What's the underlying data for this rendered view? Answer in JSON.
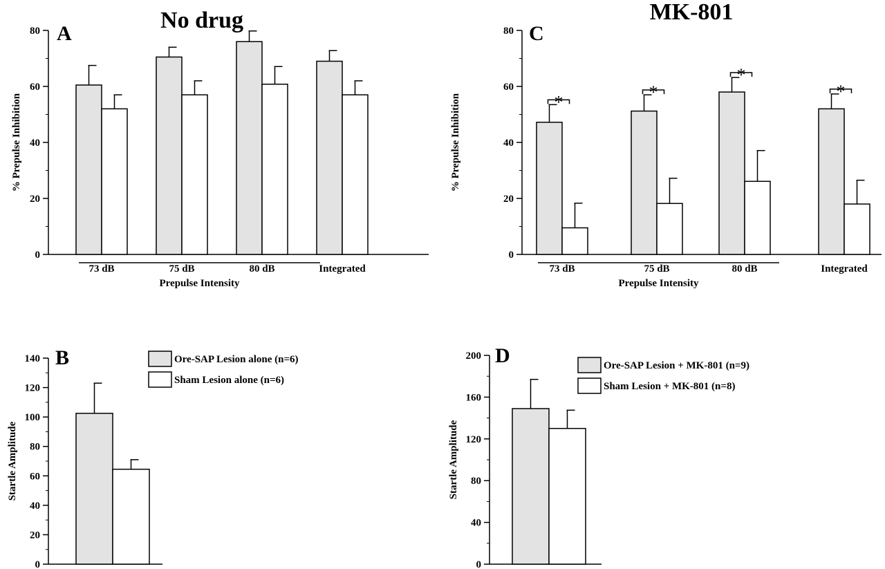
{
  "colors": {
    "group1_fill": "#e3e3e3",
    "group2_fill": "#ffffff",
    "stroke": "#000000"
  },
  "chart_data": [
    {
      "id": "A",
      "type": "bar",
      "panel_letter": "A",
      "title": "No drug",
      "xlabel": "Prepulse Intensity",
      "ylabel": "% Prepulse Inhibition",
      "ylim": [
        0,
        80
      ],
      "yticks": [
        0,
        20,
        40,
        60,
        80
      ],
      "grid": false,
      "categories": [
        "73 dB",
        "75 dB",
        "80 dB",
        "Integrated"
      ],
      "series": [
        {
          "values": [
            60.5,
            70.5,
            76,
            69
          ],
          "errors": [
            7,
            3.5,
            3.8,
            3.8
          ]
        },
        {
          "values": [
            52,
            57,
            60.8,
            57
          ],
          "errors": [
            5,
            5,
            6.3,
            5
          ]
        }
      ],
      "significance": [
        false,
        false,
        false,
        false
      ]
    },
    {
      "id": "B",
      "type": "bar",
      "panel_letter": "B",
      "title": "",
      "xlabel": "",
      "ylabel": "Startle Amplitude",
      "ylim": [
        0,
        140
      ],
      "yticks": [
        0,
        20,
        40,
        60,
        80,
        100,
        120,
        140
      ],
      "grid": false,
      "categories": [
        ""
      ],
      "series": [
        {
          "name": "Ore-SAP Lesion alone (n=6)",
          "values": [
            102.5
          ],
          "errors": [
            20.5
          ]
        },
        {
          "name": "Sham Lesion alone (n=6)",
          "values": [
            64.5
          ],
          "errors": [
            6.5
          ]
        }
      ],
      "legend_position": "top-right"
    },
    {
      "id": "C",
      "type": "bar",
      "panel_letter": "C",
      "title": "MK-801",
      "xlabel": "Prepulse Intensity",
      "ylabel": "% Prepulse Inhibition",
      "ylim": [
        0,
        80
      ],
      "yticks": [
        0,
        20,
        40,
        60,
        80
      ],
      "grid": false,
      "categories": [
        "73 dB",
        "75 dB",
        "80 dB",
        "Integrated"
      ],
      "series": [
        {
          "values": [
            47.2,
            51.2,
            58,
            52
          ],
          "errors": [
            6.3,
            5.8,
            5.2,
            5.3
          ]
        },
        {
          "values": [
            9.5,
            18.2,
            26.1,
            18
          ],
          "errors": [
            8.8,
            9,
            11,
            8.5
          ]
        }
      ],
      "significance": [
        true,
        true,
        true,
        true
      ],
      "significance_symbol": "*"
    },
    {
      "id": "D",
      "type": "bar",
      "panel_letter": "D",
      "title": "",
      "xlabel": "",
      "ylabel": "Startle Amplitude",
      "ylim": [
        0,
        200
      ],
      "yticks": [
        0,
        40,
        80,
        120,
        160,
        200
      ],
      "grid": false,
      "categories": [
        ""
      ],
      "series": [
        {
          "name": "Ore-SAP Lesion + MK-801 (n=9)",
          "values": [
            149
          ],
          "errors": [
            28
          ]
        },
        {
          "name": "Sham Lesion + MK-801 (n=8)",
          "values": [
            130
          ],
          "errors": [
            17.5
          ]
        }
      ],
      "legend_position": "top-right"
    }
  ]
}
